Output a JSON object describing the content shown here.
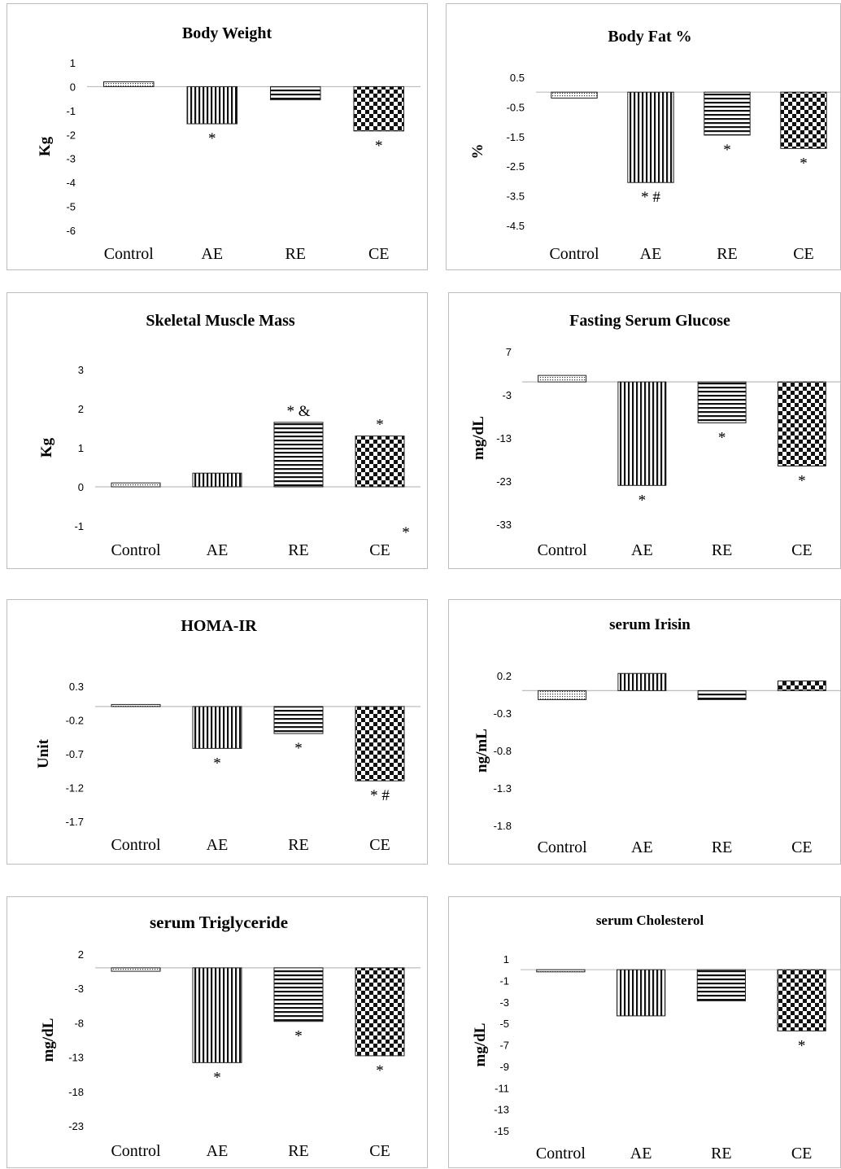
{
  "categories": [
    "Control",
    "AE",
    "RE",
    "CE"
  ],
  "chart_data": [
    {
      "type": "bar",
      "title": "Body Weight",
      "ylabel": "Kg",
      "categories": [
        "Control",
        "AE",
        "RE",
        "CE"
      ],
      "values": [
        0.2,
        -1.55,
        -0.55,
        -1.85
      ],
      "yticks": [
        1,
        0,
        -1,
        -2,
        -3,
        -4,
        -5,
        -6
      ],
      "ylim": [
        -6,
        1
      ],
      "annotations": [
        "",
        "*",
        "",
        "*"
      ]
    },
    {
      "type": "bar",
      "title": "Body Fat %",
      "ylabel": "%",
      "categories": [
        "Control",
        "AE",
        "RE",
        "CE"
      ],
      "values": [
        -0.2,
        -3.05,
        -1.45,
        -1.9
      ],
      "yticks": [
        0.5,
        -0.5,
        -1.5,
        -2.5,
        -3.5,
        -4.5
      ],
      "ylim": [
        -4.5,
        0.5
      ],
      "annotations": [
        "",
        "* #",
        "*",
        "*"
      ]
    },
    {
      "type": "bar",
      "title": "Skeletal Muscle Mass",
      "ylabel": "Kg",
      "categories": [
        "Control",
        "AE",
        "RE",
        "CE"
      ],
      "values": [
        0.1,
        0.35,
        1.65,
        1.3
      ],
      "yticks": [
        3,
        2,
        1,
        0,
        -1
      ],
      "ylim": [
        -1,
        3
      ],
      "annotations": [
        "",
        "",
        "* &",
        "*"
      ],
      "extra_annotation": "*"
    },
    {
      "type": "bar",
      "title": "Fasting Serum  Glucose",
      "ylabel": "mg/dL",
      "categories": [
        "Control",
        "AE",
        "RE",
        "CE"
      ],
      "values": [
        1.5,
        -24,
        -9.5,
        -19.5
      ],
      "yticks": [
        7,
        -3,
        -13,
        -23,
        -33
      ],
      "ylim": [
        -33,
        7
      ],
      "annotations": [
        "",
        "*",
        "*",
        "*"
      ]
    },
    {
      "type": "bar",
      "title": "HOMA-IR",
      "ylabel": "Unit",
      "categories": [
        "Control",
        "AE",
        "RE",
        "CE"
      ],
      "values": [
        0.03,
        -0.62,
        -0.4,
        -1.1
      ],
      "yticks": [
        0.3,
        -0.2,
        -0.7,
        -1.2,
        -1.7
      ],
      "ylim": [
        -1.7,
        0.3
      ],
      "annotations": [
        "",
        "*",
        "*",
        "* #"
      ]
    },
    {
      "type": "bar",
      "title": "serum Irisin",
      "ylabel": "ng/mL",
      "categories": [
        "Control",
        "AE",
        "RE",
        "CE"
      ],
      "values": [
        -0.12,
        0.23,
        -0.12,
        0.13
      ],
      "yticks": [
        0.2,
        -0.3,
        -0.8,
        -1.3,
        -1.8
      ],
      "ylim": [
        -1.8,
        0.2
      ],
      "annotations": [
        "",
        "",
        "",
        ""
      ]
    },
    {
      "type": "bar",
      "title": "serum Triglyceride",
      "ylabel": "mg/dL",
      "categories": [
        "Control",
        "AE",
        "RE",
        "CE"
      ],
      "values": [
        -0.5,
        -13.8,
        -7.8,
        -12.8
      ],
      "yticks": [
        2,
        -3,
        -8,
        -13,
        -18,
        -23
      ],
      "ylim": [
        -23,
        2
      ],
      "annotations": [
        "",
        "*",
        "*",
        "*"
      ]
    },
    {
      "type": "bar",
      "title": "serum Cholesterol",
      "ylabel": "mg/dL",
      "categories": [
        "Control",
        "AE",
        "RE",
        "CE"
      ],
      "values": [
        -0.2,
        -4.3,
        -2.9,
        -5.7
      ],
      "yticks": [
        1,
        -1,
        -3,
        -5,
        -7,
        -9,
        -11,
        -13,
        -15
      ],
      "ylim": [
        -15,
        1
      ],
      "annotations": [
        "",
        "",
        "",
        "*"
      ]
    }
  ],
  "patterns": [
    "dots",
    "vlines",
    "hlines",
    "checker"
  ]
}
